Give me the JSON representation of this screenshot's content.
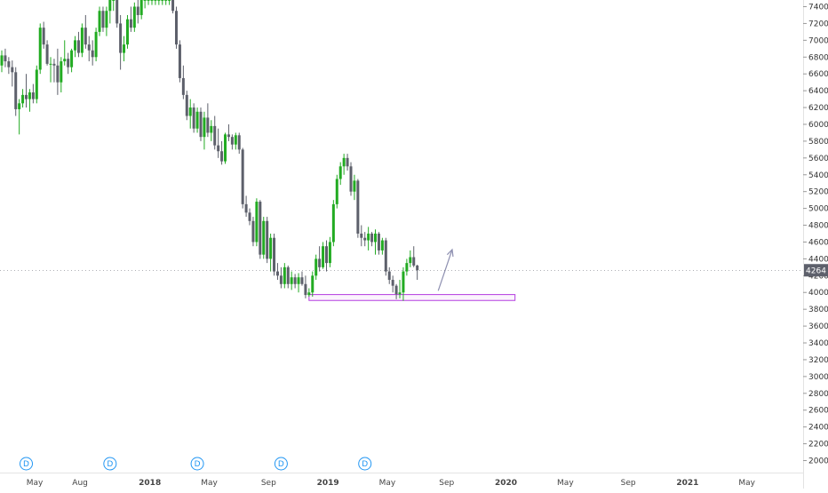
{
  "chart_data": {
    "type": "candlestick",
    "title": "",
    "timeframe": "weekly",
    "colors": {
      "up": "#22ab22",
      "down": "#5d606b",
      "zone": "#b43ce0",
      "arrow": "#8d8fb0",
      "price_label_bg": "#5d606b",
      "event_marker": "#2196f3"
    },
    "y_axis": {
      "min": 1900,
      "max": 7500,
      "position": "right",
      "ticks": [
        "2000",
        "2200",
        "2400",
        "2600",
        "2800",
        "3000",
        "3200",
        "3400",
        "3600",
        "3800",
        "4000",
        "4200",
        "4400",
        "4600",
        "4800",
        "5000",
        "5200",
        "5400",
        "5600",
        "5800",
        "6000",
        "6200",
        "6400",
        "6600",
        "6800",
        "7000",
        "7200",
        "7400"
      ]
    },
    "x_axis": {
      "min": 0,
      "max": 136,
      "ticks": [
        {
          "label": "May",
          "week": 0
        },
        {
          "label": "Aug",
          "week": 13
        },
        {
          "label": "2018",
          "week": 33,
          "major": true
        },
        {
          "label": "May",
          "week": 50
        },
        {
          "label": "Sep",
          "week": 67
        },
        {
          "label": "2019",
          "week": 84,
          "major": true
        },
        {
          "label": "May",
          "week": 101
        },
        {
          "label": "Sep",
          "week": 118
        },
        {
          "label": "2020",
          "week": 135,
          "major": true
        },
        {
          "label": "May",
          "week": 152
        },
        {
          "label": "Sep",
          "week": 170
        },
        {
          "label": "2021",
          "week": 187,
          "major": true
        },
        {
          "label": "May",
          "week": 204
        }
      ]
    },
    "last_price": "4264",
    "events": [
      {
        "label": "D",
        "week": 7
      },
      {
        "label": "D",
        "week": 31
      },
      {
        "label": "D",
        "week": 56
      },
      {
        "label": "D",
        "week": 80
      },
      {
        "label": "D",
        "week": 104
      }
    ],
    "support_zone": {
      "week_start": 88,
      "week_end": 147,
      "low": 3905,
      "high": 3975
    },
    "arrow": {
      "from": {
        "week": 125,
        "price": 4020
      },
      "to": {
        "week": 129,
        "price": 4510
      }
    },
    "candles": [
      {
        "o": 6700,
        "h": 6880,
        "l": 6620,
        "c": 6820
      },
      {
        "o": 6820,
        "h": 6900,
        "l": 6680,
        "c": 6750
      },
      {
        "o": 6750,
        "h": 6800,
        "l": 6600,
        "c": 6680
      },
      {
        "o": 6680,
        "h": 6760,
        "l": 6450,
        "c": 6620
      },
      {
        "o": 6620,
        "h": 6680,
        "l": 6100,
        "c": 6180
      },
      {
        "o": 6180,
        "h": 6300,
        "l": 5880,
        "c": 6250
      },
      {
        "o": 6250,
        "h": 6420,
        "l": 6200,
        "c": 6350
      },
      {
        "o": 6350,
        "h": 6600,
        "l": 6200,
        "c": 6300
      },
      {
        "o": 6300,
        "h": 6420,
        "l": 6150,
        "c": 6380
      },
      {
        "o": 6380,
        "h": 6480,
        "l": 6250,
        "c": 6300
      },
      {
        "o": 6300,
        "h": 6700,
        "l": 6250,
        "c": 6650
      },
      {
        "o": 6650,
        "h": 7200,
        "l": 6600,
        "c": 7150
      },
      {
        "o": 7150,
        "h": 7220,
        "l": 6900,
        "c": 6950
      },
      {
        "o": 6950,
        "h": 7000,
        "l": 6700,
        "c": 6720
      },
      {
        "o": 6720,
        "h": 6800,
        "l": 6500,
        "c": 6720
      },
      {
        "o": 6720,
        "h": 6780,
        "l": 6500,
        "c": 6700
      },
      {
        "o": 6700,
        "h": 6900,
        "l": 6350,
        "c": 6500
      },
      {
        "o": 6500,
        "h": 6800,
        "l": 6380,
        "c": 6750
      },
      {
        "o": 6750,
        "h": 7000,
        "l": 6700,
        "c": 6780
      },
      {
        "o": 6780,
        "h": 6850,
        "l": 6600,
        "c": 6680
      },
      {
        "o": 6680,
        "h": 6900,
        "l": 6620,
        "c": 6880
      },
      {
        "o": 6880,
        "h": 7050,
        "l": 6800,
        "c": 7000
      },
      {
        "o": 7000,
        "h": 7100,
        "l": 6800,
        "c": 6850
      },
      {
        "o": 6850,
        "h": 7200,
        "l": 6800,
        "c": 7150
      },
      {
        "o": 7150,
        "h": 7300,
        "l": 6900,
        "c": 6950
      },
      {
        "o": 6950,
        "h": 7050,
        "l": 6750,
        "c": 6880
      },
      {
        "o": 6880,
        "h": 7000,
        "l": 6700,
        "c": 6800
      },
      {
        "o": 6800,
        "h": 7150,
        "l": 6750,
        "c": 7100
      },
      {
        "o": 7100,
        "h": 7400,
        "l": 7050,
        "c": 7350
      },
      {
        "o": 7350,
        "h": 7400,
        "l": 7100,
        "c": 7150
      },
      {
        "o": 7150,
        "h": 7400,
        "l": 7050,
        "c": 7350
      },
      {
        "o": 7350,
        "h": 7480,
        "l": 7200,
        "c": 7480
      },
      {
        "o": 7480,
        "h": 7500,
        "l": 7350,
        "c": 7480
      },
      {
        "o": 7480,
        "h": 7500,
        "l": 7150,
        "c": 7200
      },
      {
        "o": 7200,
        "h": 7300,
        "l": 6650,
        "c": 6850
      },
      {
        "o": 6850,
        "h": 7050,
        "l": 6750,
        "c": 6950
      },
      {
        "o": 6950,
        "h": 7300,
        "l": 6900,
        "c": 7250
      },
      {
        "o": 7250,
        "h": 7400,
        "l": 7100,
        "c": 7150
      },
      {
        "o": 7150,
        "h": 7450,
        "l": 7100,
        "c": 7400
      },
      {
        "o": 7400,
        "h": 7500,
        "l": 7200,
        "c": 7300
      },
      {
        "o": 7300,
        "h": 7500,
        "l": 7250,
        "c": 7480
      },
      {
        "o": 7480,
        "h": 7500,
        "l": 7380,
        "c": 7480
      },
      {
        "o": 7480,
        "h": 7500,
        "l": 7420,
        "c": 7480
      },
      {
        "o": 7480,
        "h": 7500,
        "l": 7420,
        "c": 7480
      },
      {
        "o": 7480,
        "h": 7500,
        "l": 7420,
        "c": 7480
      },
      {
        "o": 7480,
        "h": 7500,
        "l": 7420,
        "c": 7480
      },
      {
        "o": 7480,
        "h": 7500,
        "l": 7420,
        "c": 7480
      },
      {
        "o": 7480,
        "h": 7500,
        "l": 7420,
        "c": 7480
      },
      {
        "o": 7480,
        "h": 7500,
        "l": 7420,
        "c": 7480
      },
      {
        "o": 7480,
        "h": 7500,
        "l": 7320,
        "c": 7350
      },
      {
        "o": 7350,
        "h": 7400,
        "l": 6900,
        "c": 6950
      },
      {
        "o": 6950,
        "h": 7000,
        "l": 6500,
        "c": 6550
      },
      {
        "o": 6550,
        "h": 6700,
        "l": 6300,
        "c": 6350
      },
      {
        "o": 6350,
        "h": 6400,
        "l": 6050,
        "c": 6100
      },
      {
        "o": 6100,
        "h": 6300,
        "l": 5950,
        "c": 6200
      },
      {
        "o": 6200,
        "h": 6250,
        "l": 5900,
        "c": 5950
      },
      {
        "o": 5950,
        "h": 6200,
        "l": 5900,
        "c": 6150
      },
      {
        "o": 6150,
        "h": 6200,
        "l": 5800,
        "c": 5850
      },
      {
        "o": 5850,
        "h": 6150,
        "l": 5700,
        "c": 6080
      },
      {
        "o": 6080,
        "h": 6250,
        "l": 5850,
        "c": 5900
      },
      {
        "o": 5900,
        "h": 6050,
        "l": 5800,
        "c": 5980
      },
      {
        "o": 5980,
        "h": 6100,
        "l": 5700,
        "c": 5750
      },
      {
        "o": 5750,
        "h": 5950,
        "l": 5600,
        "c": 5680
      },
      {
        "o": 5680,
        "h": 5800,
        "l": 5520,
        "c": 5560
      },
      {
        "o": 5560,
        "h": 5900,
        "l": 5530,
        "c": 5880
      },
      {
        "o": 5880,
        "h": 6000,
        "l": 5800,
        "c": 5850
      },
      {
        "o": 5850,
        "h": 5880,
        "l": 5700,
        "c": 5760
      },
      {
        "o": 5760,
        "h": 5900,
        "l": 5700,
        "c": 5870
      },
      {
        "o": 5870,
        "h": 5900,
        "l": 5650,
        "c": 5700
      },
      {
        "o": 5700,
        "h": 5720,
        "l": 5000,
        "c": 5050
      },
      {
        "o": 5050,
        "h": 5150,
        "l": 4900,
        "c": 4950
      },
      {
        "o": 4950,
        "h": 5000,
        "l": 4800,
        "c": 4850
      },
      {
        "o": 4850,
        "h": 4900,
        "l": 4550,
        "c": 4600
      },
      {
        "o": 4600,
        "h": 5120,
        "l": 4550,
        "c": 5080
      },
      {
        "o": 5080,
        "h": 5100,
        "l": 4400,
        "c": 4450
      },
      {
        "o": 4450,
        "h": 4900,
        "l": 4400,
        "c": 4850
      },
      {
        "o": 4850,
        "h": 4900,
        "l": 4350,
        "c": 4400
      },
      {
        "o": 4400,
        "h": 4700,
        "l": 4250,
        "c": 4650
      },
      {
        "o": 4650,
        "h": 4700,
        "l": 4200,
        "c": 4250
      },
      {
        "o": 4250,
        "h": 4350,
        "l": 4150,
        "c": 4200
      },
      {
        "o": 4200,
        "h": 4300,
        "l": 4050,
        "c": 4100
      },
      {
        "o": 4100,
        "h": 4350,
        "l": 4050,
        "c": 4300
      },
      {
        "o": 4300,
        "h": 4320,
        "l": 4050,
        "c": 4100
      },
      {
        "o": 4100,
        "h": 4250,
        "l": 4030,
        "c": 4180
      },
      {
        "o": 4180,
        "h": 4220,
        "l": 4050,
        "c": 4100
      },
      {
        "o": 4100,
        "h": 4230,
        "l": 4000,
        "c": 4180
      },
      {
        "o": 4180,
        "h": 4250,
        "l": 4080,
        "c": 4100
      },
      {
        "o": 4100,
        "h": 4200,
        "l": 3930,
        "c": 3970
      },
      {
        "o": 3970,
        "h": 4050,
        "l": 3950,
        "c": 4000
      },
      {
        "o": 4000,
        "h": 4250,
        "l": 3950,
        "c": 4200
      },
      {
        "o": 4200,
        "h": 4450,
        "l": 4150,
        "c": 4400
      },
      {
        "o": 4400,
        "h": 4550,
        "l": 4250,
        "c": 4300
      },
      {
        "o": 4300,
        "h": 4600,
        "l": 4280,
        "c": 4550
      },
      {
        "o": 4550,
        "h": 4620,
        "l": 4250,
        "c": 4350
      },
      {
        "o": 4350,
        "h": 4660,
        "l": 4300,
        "c": 4600
      },
      {
        "o": 4600,
        "h": 5100,
        "l": 4550,
        "c": 5050
      },
      {
        "o": 5050,
        "h": 5400,
        "l": 5000,
        "c": 5350
      },
      {
        "o": 5350,
        "h": 5550,
        "l": 5280,
        "c": 5500
      },
      {
        "o": 5500,
        "h": 5650,
        "l": 5400,
        "c": 5600
      },
      {
        "o": 5600,
        "h": 5650,
        "l": 5450,
        "c": 5500
      },
      {
        "o": 5500,
        "h": 5550,
        "l": 5150,
        "c": 5200
      },
      {
        "o": 5200,
        "h": 5400,
        "l": 5100,
        "c": 5330
      },
      {
        "o": 5330,
        "h": 5350,
        "l": 4650,
        "c": 4700
      },
      {
        "o": 4700,
        "h": 4800,
        "l": 4550,
        "c": 4650
      },
      {
        "o": 4650,
        "h": 4720,
        "l": 4550,
        "c": 4620
      },
      {
        "o": 4620,
        "h": 4780,
        "l": 4500,
        "c": 4700
      },
      {
        "o": 4700,
        "h": 4720,
        "l": 4550,
        "c": 4600
      },
      {
        "o": 4600,
        "h": 4750,
        "l": 4450,
        "c": 4700
      },
      {
        "o": 4700,
        "h": 4720,
        "l": 4450,
        "c": 4500
      },
      {
        "o": 4500,
        "h": 4650,
        "l": 4450,
        "c": 4620
      },
      {
        "o": 4620,
        "h": 4650,
        "l": 4200,
        "c": 4250
      },
      {
        "o": 4250,
        "h": 4300,
        "l": 4100,
        "c": 4150
      },
      {
        "o": 4150,
        "h": 4200,
        "l": 4000,
        "c": 4080
      },
      {
        "o": 4080,
        "h": 4100,
        "l": 3920,
        "c": 3980
      },
      {
        "o": 3980,
        "h": 4150,
        "l": 3930,
        "c": 4000
      },
      {
        "o": 4000,
        "h": 4300,
        "l": 3900,
        "c": 4250
      },
      {
        "o": 4250,
        "h": 4400,
        "l": 4200,
        "c": 4350
      },
      {
        "o": 4350,
        "h": 4500,
        "l": 4300,
        "c": 4420
      },
      {
        "o": 4420,
        "h": 4550,
        "l": 4300,
        "c": 4320
      },
      {
        "o": 4320,
        "h": 4330,
        "l": 4150,
        "c": 4264
      }
    ]
  }
}
